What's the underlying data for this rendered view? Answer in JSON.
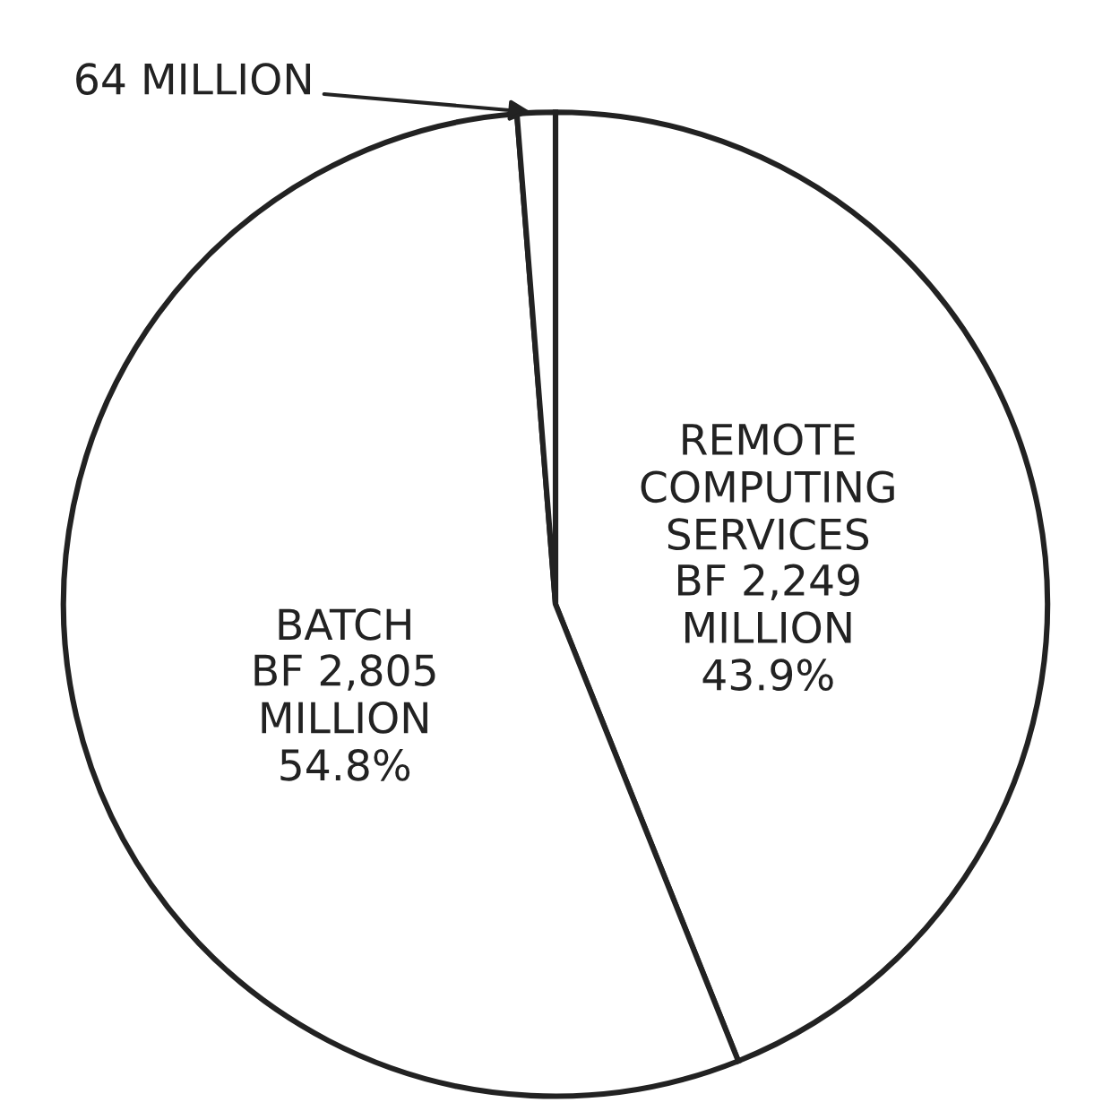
{
  "chart_data": {
    "type": "pie",
    "categories": [
      "REMOTE\nCOMPUTING\nSERVICES",
      "BATCH",
      null
    ],
    "values": [
      2249,
      2805,
      64
    ],
    "colors": [
      "#ffffff",
      "#ffffff",
      "#ffffff"
    ],
    "value_labels": [
      "BF 2,249\nMILLION\n43.9%",
      "BF 2,805\nMILLION\n54.8%",
      "64 MILLION"
    ],
    "legend": false
  }
}
